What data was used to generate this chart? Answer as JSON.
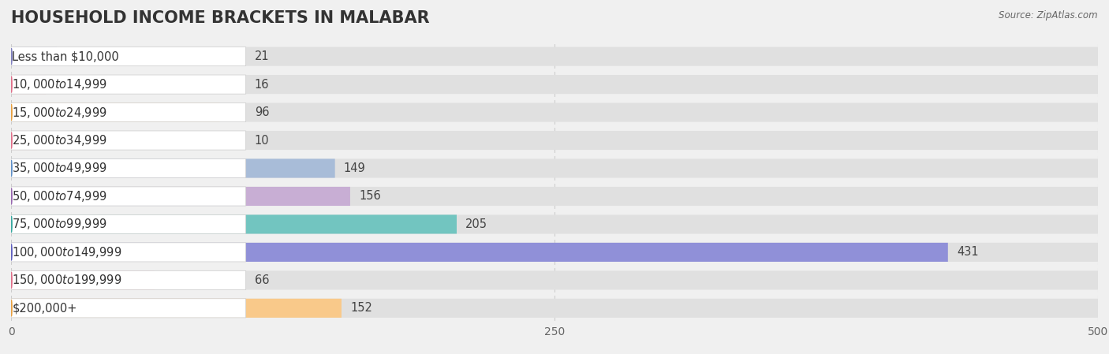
{
  "title": "HOUSEHOLD INCOME BRACKETS IN MALABAR",
  "source": "Source: ZipAtlas.com",
  "categories": [
    "Less than $10,000",
    "$10,000 to $14,999",
    "$15,000 to $24,999",
    "$25,000 to $34,999",
    "$35,000 to $49,999",
    "$50,000 to $74,999",
    "$75,000 to $99,999",
    "$100,000 to $149,999",
    "$150,000 to $199,999",
    "$200,000+"
  ],
  "values": [
    21,
    16,
    96,
    10,
    149,
    156,
    205,
    431,
    66,
    152
  ],
  "bar_colors": [
    "#b8b8de",
    "#f5afc0",
    "#f9c98a",
    "#f5afc0",
    "#a8bcd8",
    "#c8aed4",
    "#72c5c0",
    "#9090d8",
    "#f5afc0",
    "#f9c98a"
  ],
  "dot_colors": [
    "#8080c0",
    "#e0708a",
    "#e8a040",
    "#e0708a",
    "#6090c8",
    "#9868b0",
    "#38a8a0",
    "#6060c0",
    "#e0708a",
    "#e8a040"
  ],
  "background_color": "#f0f0f0",
  "bar_bg_color": "#e0e0e0",
  "label_bg_color": "#ffffff",
  "xlim": [
    0,
    500
  ],
  "xticks": [
    0,
    250,
    500
  ],
  "title_fontsize": 15,
  "label_fontsize": 10.5,
  "value_fontsize": 10.5
}
